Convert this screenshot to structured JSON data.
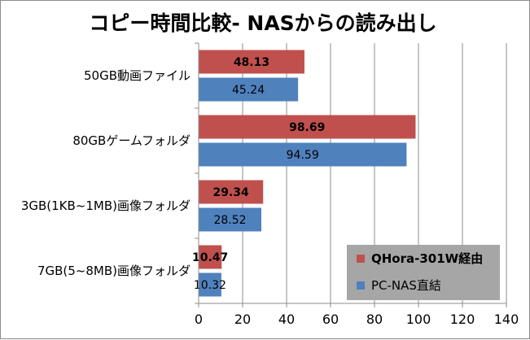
{
  "chart_data": {
    "type": "bar",
    "orientation": "horizontal",
    "title": "コピー時間比較- NASからの読み出し",
    "categories": [
      "50GB動画ファイル",
      "80GBゲームフォルダ",
      "3GB(1KB~1MB)画像フォルダ",
      "7GB(5~8MB)画像フォルダ"
    ],
    "series": [
      {
        "name": "QHora-301W経由",
        "color": "#c0504d",
        "values": [
          48.13,
          98.69,
          29.34,
          10.47
        ]
      },
      {
        "name": "PC-NAS直結",
        "color": "#4f81bd",
        "values": [
          45.24,
          94.59,
          28.52,
          10.32
        ]
      }
    ],
    "xlim": [
      0,
      140
    ],
    "xticks": [
      "0",
      "20",
      "40",
      "60",
      "80",
      "100",
      "120",
      "140"
    ],
    "grid": true,
    "legend_position": "bottom-right",
    "value_labels": [
      [
        "48.13",
        "98.69",
        "29.34",
        "10.47"
      ],
      [
        "45.24",
        "94.59",
        "28.52",
        "10.32"
      ]
    ]
  }
}
